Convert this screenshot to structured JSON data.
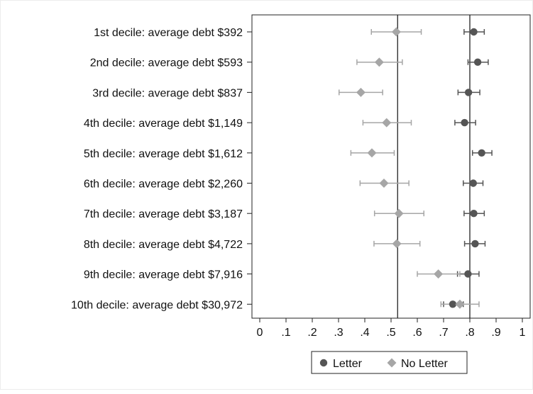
{
  "chart_data": {
    "type": "scatter",
    "categories": [
      "1st decile: average debt $392",
      "2nd decile: average debt $593",
      "3rd decile: average debt $837",
      "4th decile: average debt $1,149",
      "5th decile: average debt $1,612",
      "6th decile: average debt $2,260",
      "7th decile: average debt $3,187",
      "8th decile: average debt $4,722",
      "9th decile: average debt $7,916",
      "10th decile: average debt $30,972"
    ],
    "xlim": [
      0,
      1
    ],
    "x_ticks": [
      "0",
      ".1",
      ".2",
      ".3",
      ".4",
      ".5",
      ".6",
      ".7",
      ".8",
      ".9",
      "1"
    ],
    "grid": false,
    "legend_position": "bottom",
    "series": [
      {
        "name": "Letter",
        "marker": "circle",
        "color": "#555555",
        "values": [
          0.815,
          0.83,
          0.795,
          0.78,
          0.845,
          0.813,
          0.815,
          0.82,
          0.793,
          0.735
        ],
        "lower": [
          0.778,
          0.793,
          0.755,
          0.743,
          0.81,
          0.775,
          0.778,
          0.78,
          0.753,
          0.7
        ],
        "upper": [
          0.855,
          0.87,
          0.838,
          0.822,
          0.884,
          0.85,
          0.855,
          0.858,
          0.835,
          0.775
        ]
      },
      {
        "name": "No Letter",
        "marker": "diamond",
        "color": "#a6a6a6",
        "values": [
          0.52,
          0.455,
          0.385,
          0.483,
          0.427,
          0.473,
          0.53,
          0.522,
          0.68,
          0.762
        ],
        "lower": [
          0.425,
          0.37,
          0.302,
          0.393,
          0.347,
          0.382,
          0.437,
          0.435,
          0.6,
          0.69
        ],
        "upper": [
          0.615,
          0.543,
          0.468,
          0.577,
          0.512,
          0.568,
          0.625,
          0.61,
          0.762,
          0.835
        ]
      }
    ],
    "reference_lines": [
      0.525,
      0.8
    ]
  }
}
